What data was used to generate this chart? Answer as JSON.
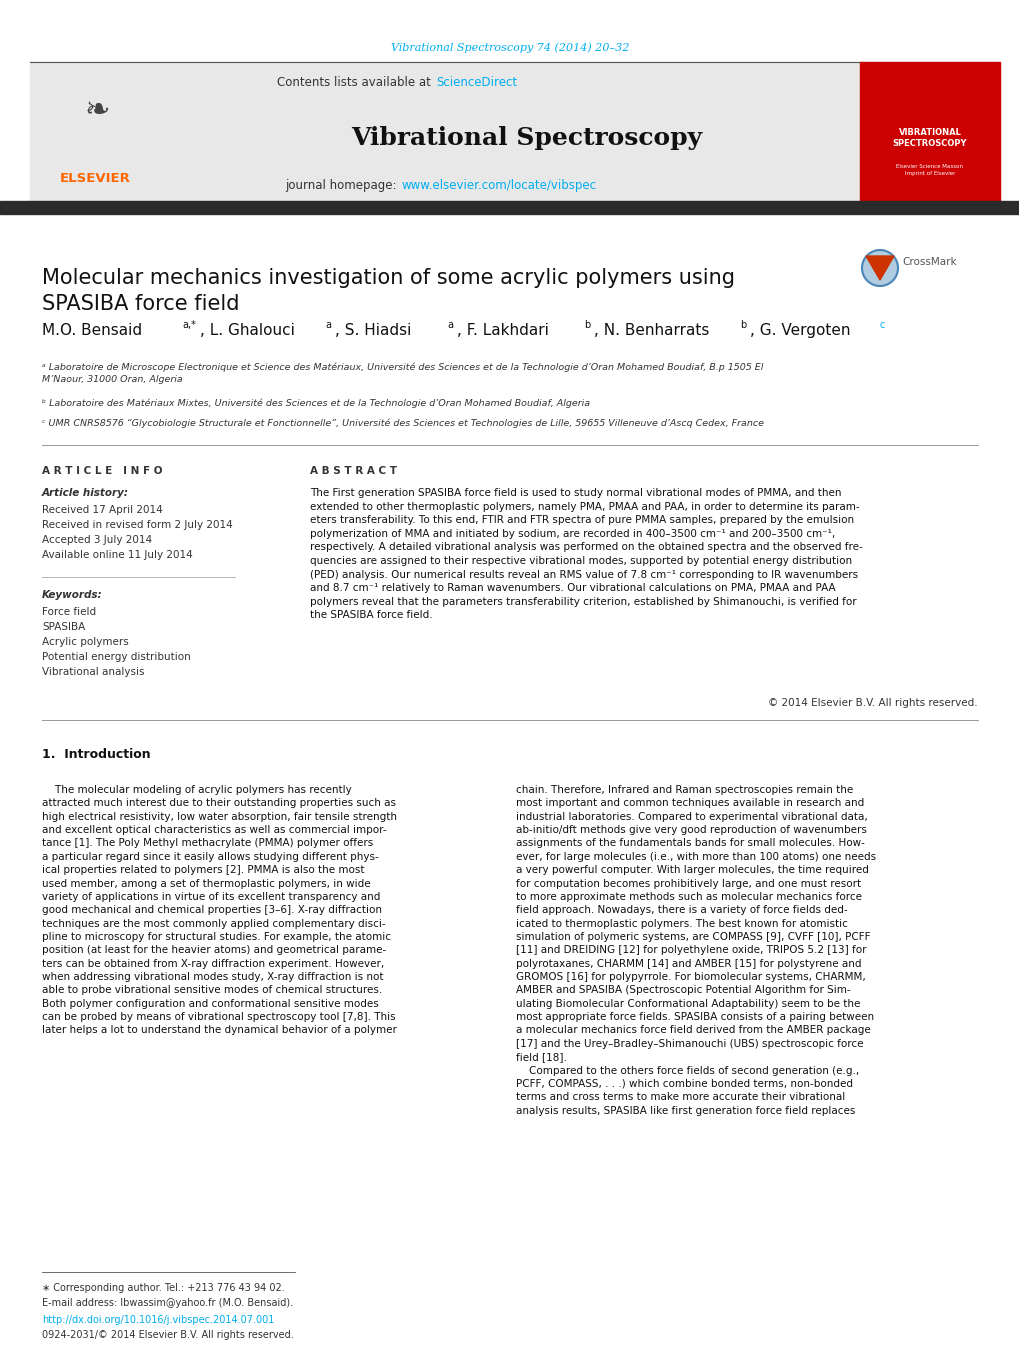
{
  "page_bg": "#ffffff",
  "journal_ref_color": "#00aeef",
  "journal_ref": "Vibrational Spectroscopy 74 (2014) 20–32",
  "header_bg": "#e8e8e8",
  "header_contents": "Contents lists available at",
  "sciencedirect_color": "#00aeef",
  "sciencedirect_text": "ScienceDirect",
  "journal_title": "Vibrational Spectroscopy",
  "journal_homepage_label": "journal homepage:",
  "journal_homepage_url": "www.elsevier.com/locate/vibspec",
  "journal_homepage_color": "#00aeef",
  "dark_bar_color": "#2b2b2b",
  "article_title": "Molecular mechanics investigation of some acrylic polymers using\nSPASIBA force field",
  "affil_a": "ᵃ Laboratoire de Microscope Electronique et Science des Matériaux, Université des Sciences et de la Technologie d’Oran Mohamed Boudiaf, B.p 1505 El\nM’Naour, 31000 Oran, Algeria",
  "affil_b": "ᵇ Laboratoire des Matériaux Mixtes, Université des Sciences et de la Technologie d’Oran Mohamed Boudiaf, Algeria",
  "affil_c": "ᶜ UMR CNRS8576 “Glycobiologie Structurale et Fonctionnelle”, Université des Sciences et Technologies de Lille, 59655 Villeneuve d’Ascq Cedex, France",
  "article_info_title": "A R T I C L E   I N F O",
  "article_history_title": "Article history:",
  "received": "Received 17 April 2014",
  "revised": "Received in revised form 2 July 2014",
  "accepted": "Accepted 3 July 2014",
  "available": "Available online 11 July 2014",
  "keywords_title": "Keywords:",
  "keywords": [
    "Force field",
    "SPASIBA",
    "Acrylic polymers",
    "Potential energy distribution",
    "Vibrational analysis"
  ],
  "abstract_title": "A B S T R A C T",
  "abstract_text": "The First generation SPASIBA force field is used to study normal vibrational modes of PMMA, and then\nextended to other thermoplastic polymers, namely PMA, PMAA and PAA, in order to determine its param-\neters transferability. To this end, FTIR and FTR spectra of pure PMMA samples, prepared by the emulsion\npolymerization of MMA and initiated by sodium, are recorded in 400–3500 cm⁻¹ and 200–3500 cm⁻¹,\nrespectively. A detailed vibrational analysis was performed on the obtained spectra and the observed fre-\nquencies are assigned to their respective vibrational modes, supported by potential energy distribution\n(PED) analysis. Our numerical results reveal an RMS value of 7.8 cm⁻¹ corresponding to IR wavenumbers\nand 8.7 cm⁻¹ relatively to Raman wavenumbers. Our vibrational calculations on PMA, PMAA and PAA\npolymers reveal that the parameters transferability criterion, established by Shimanouchi, is verified for\nthe SPASIBA force field.",
  "copyright": "© 2014 Elsevier B.V. All rights reserved.",
  "section1_title": "1.  Introduction",
  "intro_col1": "    The molecular modeling of acrylic polymers has recently\nattracted much interest due to their outstanding properties such as\nhigh electrical resistivity, low water absorption, fair tensile strength\nand excellent optical characteristics as well as commercial impor-\ntance [1]. The Poly Methyl methacrylate (PMMA) polymer offers\na particular regard since it easily allows studying different phys-\nical properties related to polymers [2]. PMMA is also the most\nused member, among a set of thermoplastic polymers, in wide\nvariety of applications in virtue of its excellent transparency and\ngood mechanical and chemical properties [3–6]. X-ray diffraction\ntechniques are the most commonly applied complementary disci-\npline to microscopy for structural studies. For example, the atomic\nposition (at least for the heavier atoms) and geometrical parame-\nters can be obtained from X-ray diffraction experiment. However,\nwhen addressing vibrational modes study, X-ray diffraction is not\nable to probe vibrational sensitive modes of chemical structures.\nBoth polymer configuration and conformational sensitive modes\ncan be probed by means of vibrational spectroscopy tool [7,8]. This\nlater helps a lot to understand the dynamical behavior of a polymer",
  "intro_col2": "chain. Therefore, Infrared and Raman spectroscopies remain the\nmost important and common techniques available in research and\nindustrial laboratories. Compared to experimental vibrational data,\nab-initio/dft methods give very good reproduction of wavenumbers\nassignments of the fundamentals bands for small molecules. How-\never, for large molecules (i.e., with more than 100 atoms) one needs\na very powerful computer. With larger molecules, the time required\nfor computation becomes prohibitively large, and one must resort\nto more approximate methods such as molecular mechanics force\nfield approach. Nowadays, there is a variety of force fields ded-\nicated to thermoplastic polymers. The best known for atomistic\nsimulation of polymeric systems, are COMPASS [9], CVFF [10], PCFF\n[11] and DREIDING [12] for polyethylene oxide, TRIPOS 5.2 [13] for\npolyrotaxanes, CHARMM [14] and AMBER [15] for polystyrene and\nGROMOS [16] for polypyrrole. For biomolecular systems, CHARMM,\nAMBER and SPASIBA (Spectroscopic Potential Algorithm for Sim-\nulating Biomolecular Conformational Adaptability) seem to be the\nmost appropriate force fields. SPASIBA consists of a pairing between\na molecular mechanics force field derived from the AMBER package\n[17] and the Urey–Bradley–Shimanouchi (UBS) spectroscopic force\nfield [18].\n    Compared to the others force fields of second generation (e.g.,\nPCFF, COMPASS, . . .) which combine bonded terms, non-bonded\nterms and cross terms to make more accurate their vibrational\nanalysis results, SPASIBA like first generation force field replaces",
  "footnote_star": "∗ Corresponding author. Tel.: +213 776 43 94 02.",
  "footnote_email": "E-mail address: lbwassim@yahoo.fr (M.O. Bensaid).",
  "footnote_doi": "http://dx.doi.org/10.1016/j.vibspec.2014.07.001",
  "footnote_issn": "0924-2031/© 2014 Elsevier B.V. All rights reserved.",
  "red_cover_bg": "#cc0000",
  "cover_title": "VIBRATIONAL\nSPECTROSCOPY",
  "elsevier_color": "#ff6600",
  "link_color": "#00aeef"
}
